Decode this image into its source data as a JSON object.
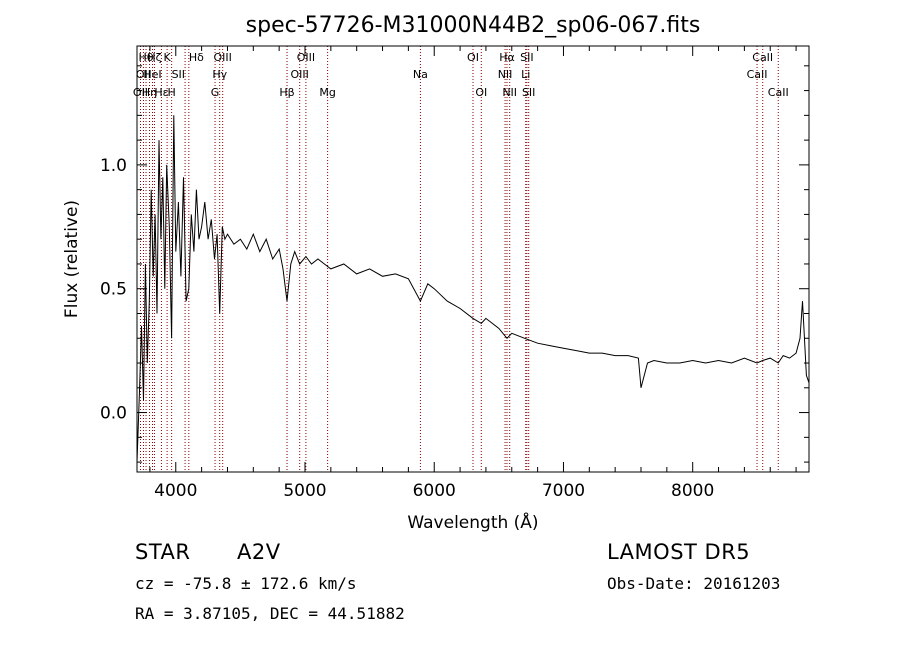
{
  "chart_data": {
    "type": "line",
    "title": "spec-57726-M31000N44B2_sp06-067.fits",
    "xlabel": "Wavelength (Å)",
    "ylabel": "Flux (relative)",
    "xlim": [
      3700,
      8900
    ],
    "ylim": [
      -0.24,
      1.48
    ],
    "x_ticks": [
      4000,
      5000,
      6000,
      7000,
      8000
    ],
    "y_ticks": [
      0.0,
      0.5,
      1.0
    ],
    "y_tick_labels": [
      "0.0",
      "0.5",
      "1.0"
    ],
    "grid": false,
    "series": [
      {
        "x": [
          3700,
          3720,
          3735,
          3750,
          3765,
          3780,
          3795,
          3810,
          3825,
          3840,
          3855,
          3870,
          3885,
          3900,
          3915,
          3930,
          3950,
          3968,
          3985,
          4000,
          4020,
          4040,
          4060,
          4080,
          4101,
          4120,
          4140,
          4160,
          4180,
          4200,
          4225,
          4250,
          4275,
          4300,
          4320,
          4340,
          4360,
          4380,
          4400,
          4450,
          4500,
          4550,
          4600,
          4650,
          4700,
          4750,
          4800,
          4830,
          4861,
          4890,
          4920,
          4959,
          5007,
          5050,
          5100,
          5150,
          5200,
          5300,
          5400,
          5500,
          5600,
          5700,
          5800,
          5893,
          5950,
          6000,
          6100,
          6200,
          6300,
          6364,
          6400,
          6500,
          6563,
          6600,
          6650,
          6700,
          6800,
          6900,
          7000,
          7100,
          7200,
          7300,
          7400,
          7500,
          7580,
          7600,
          7650,
          7700,
          7800,
          7900,
          8000,
          8100,
          8200,
          8300,
          8400,
          8498,
          8542,
          8600,
          8662,
          8700,
          8750,
          8800,
          8830,
          8850,
          8880,
          8900
        ],
        "y": [
          -0.2,
          0.1,
          0.35,
          0.05,
          0.6,
          0.2,
          0.45,
          0.9,
          0.55,
          0.8,
          0.4,
          1.1,
          0.7,
          0.95,
          0.5,
          1.0,
          0.75,
          0.3,
          1.2,
          0.65,
          0.85,
          0.55,
          0.95,
          0.45,
          0.5,
          0.8,
          0.65,
          0.9,
          0.7,
          0.75,
          0.85,
          0.7,
          0.78,
          0.62,
          0.72,
          0.4,
          0.75,
          0.7,
          0.72,
          0.68,
          0.7,
          0.66,
          0.72,
          0.65,
          0.7,
          0.62,
          0.66,
          0.58,
          0.45,
          0.6,
          0.65,
          0.6,
          0.63,
          0.6,
          0.62,
          0.6,
          0.58,
          0.6,
          0.56,
          0.58,
          0.55,
          0.56,
          0.54,
          0.45,
          0.52,
          0.5,
          0.45,
          0.42,
          0.38,
          0.36,
          0.38,
          0.34,
          0.3,
          0.32,
          0.31,
          0.3,
          0.28,
          0.27,
          0.26,
          0.25,
          0.24,
          0.24,
          0.23,
          0.23,
          0.22,
          0.1,
          0.2,
          0.21,
          0.2,
          0.2,
          0.21,
          0.2,
          0.21,
          0.2,
          0.22,
          0.2,
          0.21,
          0.22,
          0.2,
          0.23,
          0.22,
          0.24,
          0.3,
          0.45,
          0.15,
          0.12
        ]
      }
    ],
    "lines": [
      {
        "x": 3727,
        "label": "OII",
        "row": 2,
        "ha": "center"
      },
      {
        "x": 3750,
        "label": "OII",
        "row": 1,
        "ha": "center"
      },
      {
        "x": 3770,
        "label": "Hθ",
        "row": 0,
        "ha": "center"
      },
      {
        "x": 3797,
        "label": "Hη",
        "row": 2,
        "ha": "center"
      },
      {
        "x": 3820,
        "label": "HeI",
        "row": 1,
        "ha": "center"
      },
      {
        "x": 3835,
        "label": "Hζ",
        "row": 0,
        "ha": "center"
      },
      {
        "x": 3889,
        "label": "Hε",
        "row": 2,
        "ha": "center"
      },
      {
        "x": 3933,
        "label": "K",
        "row": 0,
        "ha": "center"
      },
      {
        "x": 3968,
        "label": "H",
        "row": 2,
        "ha": "center"
      },
      {
        "x": 4072,
        "label": "SII",
        "row": 1,
        "ha": "right"
      },
      {
        "x": 4101,
        "label": "Hδ",
        "row": 0,
        "ha": "left"
      },
      {
        "x": 4304,
        "label": "G",
        "row": 2,
        "ha": "center"
      },
      {
        "x": 4340,
        "label": "Hγ",
        "row": 1,
        "ha": "center"
      },
      {
        "x": 4363,
        "label": "OIII",
        "row": 0,
        "ha": "center"
      },
      {
        "x": 4861,
        "label": "Hβ",
        "row": 2,
        "ha": "center"
      },
      {
        "x": 4959,
        "label": "OIII",
        "row": 1,
        "ha": "center"
      },
      {
        "x": 5007,
        "label": "OIII",
        "row": 0,
        "ha": "center"
      },
      {
        "x": 5175,
        "label": "Mg",
        "row": 2,
        "ha": "center"
      },
      {
        "x": 5893,
        "label": "Na",
        "row": 1,
        "ha": "center"
      },
      {
        "x": 6300,
        "label": "OI",
        "row": 0,
        "ha": "center"
      },
      {
        "x": 6364,
        "label": "OI",
        "row": 2,
        "ha": "center"
      },
      {
        "x": 6548,
        "label": "NII",
        "row": 1,
        "ha": "center"
      },
      {
        "x": 6563,
        "label": "Hα",
        "row": 0,
        "ha": "center"
      },
      {
        "x": 6584,
        "label": "NII",
        "row": 2,
        "ha": "center"
      },
      {
        "x": 6708,
        "label": "Li",
        "row": 1,
        "ha": "center"
      },
      {
        "x": 6717,
        "label": "SII",
        "row": 0,
        "ha": "center"
      },
      {
        "x": 6731,
        "label": "SII",
        "row": 2,
        "ha": "center"
      },
      {
        "x": 8498,
        "label": "CaII",
        "row": 1,
        "ha": "center"
      },
      {
        "x": 8542,
        "label": "CaII",
        "row": 0,
        "ha": "center"
      },
      {
        "x": 8662,
        "label": "CaII",
        "row": 2,
        "ha": "center"
      }
    ]
  },
  "info": {
    "object_class": "STAR",
    "subclass": "A2V",
    "survey": "LAMOST  DR5",
    "cz": "cz = -75.8 ± 172.6 km/s",
    "obs_date": "Obs-Date: 20161203",
    "coords": "RA =   3.87105, DEC =  44.51882"
  },
  "colors": {
    "axes": "#000000",
    "spectrum": "#000000",
    "line_markers": "#8b0000",
    "background": "#ffffff"
  }
}
